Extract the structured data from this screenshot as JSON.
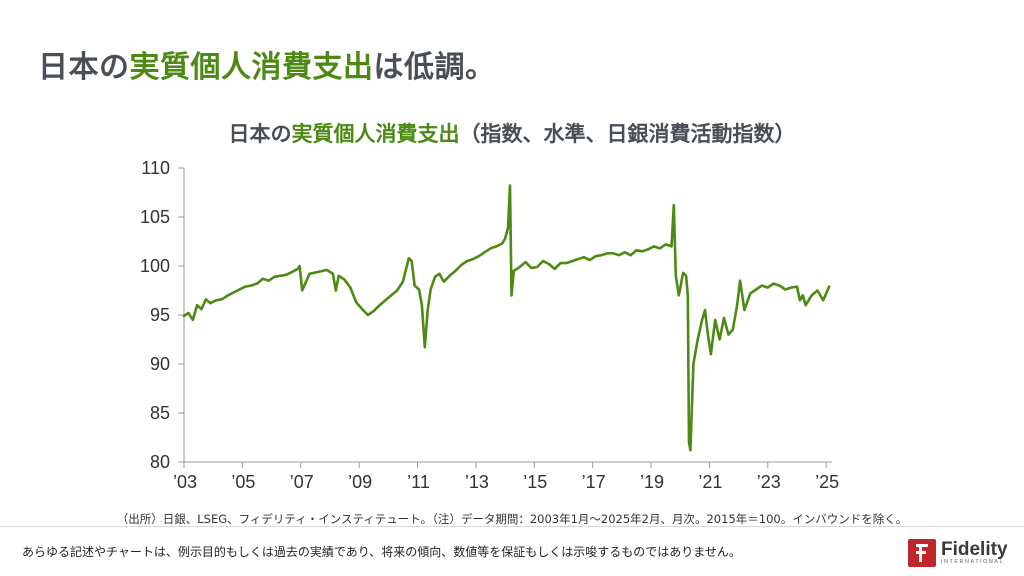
{
  "slide": {
    "title_part1": "日本の",
    "title_highlight": "実質個人消費支出",
    "title_part2": "は低調。"
  },
  "chart_data": {
    "type": "line",
    "title_part1": "日本の",
    "title_highlight": "実質個人消費支出",
    "title_part2": "（指数、水準、日銀消費活動指数）",
    "ylim": [
      80,
      110
    ],
    "yticks": [
      "110",
      "105",
      "100",
      "95",
      "90",
      "85",
      "80"
    ],
    "xlim": [
      2003.0,
      2025.2
    ],
    "xticks": [
      {
        "x": 2003,
        "label": "’03"
      },
      {
        "x": 2005,
        "label": "’05"
      },
      {
        "x": 2007,
        "label": "’07"
      },
      {
        "x": 2009,
        "label": "’09"
      },
      {
        "x": 2011,
        "label": "’11"
      },
      {
        "x": 2013,
        "label": "’13"
      },
      {
        "x": 2015,
        "label": "’15"
      },
      {
        "x": 2017,
        "label": "’17"
      },
      {
        "x": 2019,
        "label": "’19"
      },
      {
        "x": 2021,
        "label": "’21"
      },
      {
        "x": 2023,
        "label": "’23"
      },
      {
        "x": 2025,
        "label": "’25"
      }
    ],
    "grid": false,
    "line_color": "#4c8a14",
    "series": [
      {
        "x": [
          2003.0,
          2003.15,
          2003.3,
          2003.45,
          2003.6,
          2003.75,
          2003.9,
          2004.1,
          2004.3,
          2004.5,
          2004.7,
          2004.9,
          2005.1,
          2005.3,
          2005.5,
          2005.7,
          2005.9,
          2006.1,
          2006.3,
          2006.5,
          2006.7,
          2006.9,
          2006.96,
          2007.05,
          2007.3,
          2007.6,
          2007.9,
          2008.1,
          2008.2,
          2008.3,
          2008.5,
          2008.7,
          2008.9,
          2009.1,
          2009.3,
          2009.5,
          2009.7,
          2009.9,
          2010.1,
          2010.3,
          2010.5,
          2010.7,
          2010.8,
          2010.9,
          2011.05,
          2011.15,
          2011.25,
          2011.35,
          2011.45,
          2011.6,
          2011.75,
          2011.9,
          2012.1,
          2012.3,
          2012.5,
          2012.7,
          2012.9,
          2013.1,
          2013.3,
          2013.5,
          2013.7,
          2013.9,
          2014.0,
          2014.1,
          2014.17,
          2014.22,
          2014.3,
          2014.5,
          2014.7,
          2014.9,
          2015.1,
          2015.3,
          2015.5,
          2015.7,
          2015.9,
          2016.1,
          2016.3,
          2016.5,
          2016.7,
          2016.9,
          2017.1,
          2017.3,
          2017.5,
          2017.7,
          2017.9,
          2018.1,
          2018.3,
          2018.5,
          2018.7,
          2018.9,
          2019.1,
          2019.3,
          2019.5,
          2019.7,
          2019.78,
          2019.85,
          2019.95,
          2020.1,
          2020.2,
          2020.26,
          2020.3,
          2020.35,
          2020.45,
          2020.6,
          2020.75,
          2020.85,
          2020.95,
          2021.05,
          2021.2,
          2021.35,
          2021.5,
          2021.65,
          2021.8,
          2021.95,
          2022.05,
          2022.2,
          2022.4,
          2022.6,
          2022.8,
          2023.0,
          2023.2,
          2023.4,
          2023.6,
          2023.8,
          2024.0,
          2024.1,
          2024.2,
          2024.3,
          2024.5,
          2024.7,
          2024.9,
          2025.1
        ],
        "y": [
          94.9,
          95.2,
          94.5,
          96.0,
          95.6,
          96.6,
          96.2,
          96.5,
          96.6,
          97.0,
          97.3,
          97.6,
          97.9,
          98.0,
          98.2,
          98.7,
          98.5,
          98.9,
          99.0,
          99.1,
          99.4,
          99.7,
          100.0,
          97.5,
          99.2,
          99.4,
          99.6,
          99.2,
          97.5,
          99.0,
          98.6,
          97.8,
          96.3,
          95.6,
          95.0,
          95.4,
          96.0,
          96.5,
          97.0,
          97.5,
          98.4,
          100.8,
          100.5,
          98.0,
          97.6,
          96.0,
          91.7,
          95.5,
          97.6,
          98.9,
          99.2,
          98.4,
          99.0,
          99.5,
          100.1,
          100.5,
          100.7,
          101.0,
          101.4,
          101.8,
          102.0,
          102.3,
          102.8,
          103.9,
          108.2,
          97.0,
          99.5,
          99.9,
          100.4,
          99.8,
          99.9,
          100.5,
          100.2,
          99.7,
          100.3,
          100.3,
          100.5,
          100.7,
          100.9,
          100.6,
          101.0,
          101.1,
          101.3,
          101.3,
          101.1,
          101.4,
          101.1,
          101.6,
          101.5,
          101.7,
          102.0,
          101.8,
          102.2,
          102.0,
          106.2,
          99.0,
          97.0,
          99.3,
          99.0,
          97.0,
          82.0,
          81.2,
          90.0,
          92.5,
          94.5,
          95.5,
          93.0,
          91.0,
          94.5,
          92.5,
          94.7,
          93.0,
          93.5,
          96.0,
          98.5,
          95.5,
          97.2,
          97.6,
          98.0,
          97.8,
          98.2,
          98.0,
          97.6,
          97.8,
          97.9,
          96.5,
          97.0,
          96.0,
          97.0,
          97.5,
          96.5,
          97.9
        ]
      }
    ]
  },
  "footer": {
    "source_note": "（出所）日銀、LSEG、フィデリティ・インスティテュート。（注）データ期間：2003年1月～2025年2月、月次。2015年＝100。インバウンドを除く。",
    "disclaimer": "あらゆる記述やチャートは、例示目的もしくは過去の実績であり、将来の傾向、数値等を保証もしくは示唆するものではありません。",
    "logo_name": "Fidelity",
    "logo_sub": "INTERNATIONAL",
    "logo_color": "#c0272d"
  }
}
